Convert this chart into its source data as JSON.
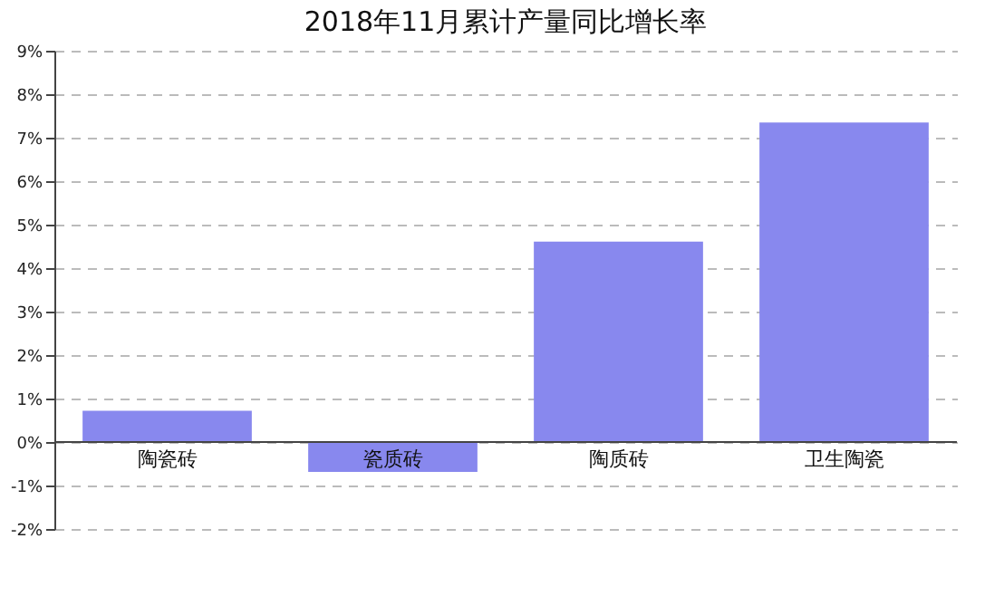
{
  "chart_data": {
    "type": "bar",
    "title": "2018年11月累计产量同比增长率",
    "categories": [
      "陶瓷砖",
      "瓷质砖",
      "陶质砖",
      "卫生陶瓷"
    ],
    "values": [
      0.72,
      -0.69,
      4.61,
      7.35
    ],
    "color": "#8888ee",
    "ylim": [
      -2,
      9
    ],
    "yticks": [
      {
        "value": -2,
        "label": "-2%"
      },
      {
        "value": -1,
        "label": "-1%"
      },
      {
        "value": 0,
        "label": "0%"
      },
      {
        "value": 1,
        "label": "1%"
      },
      {
        "value": 2,
        "label": "2%"
      },
      {
        "value": 3,
        "label": "3%"
      },
      {
        "value": 4,
        "label": "4%"
      },
      {
        "value": 5,
        "label": "5%"
      },
      {
        "value": 6,
        "label": "6%"
      },
      {
        "value": 7,
        "label": "7%"
      },
      {
        "value": 8,
        "label": "8%"
      },
      {
        "value": 9,
        "label": "9%"
      }
    ],
    "grid": "y"
  }
}
